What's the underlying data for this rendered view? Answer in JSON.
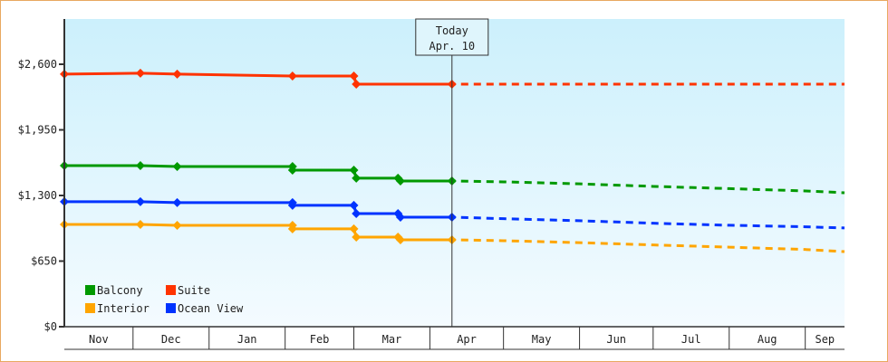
{
  "chart_data": {
    "type": "line",
    "title": "",
    "xlabel": "",
    "ylabel": "",
    "ylim": [
      0,
      2900
    ],
    "yticks": [
      0,
      650,
      1300,
      1950,
      2600
    ],
    "ytick_labels": [
      "$0",
      "$650",
      "$1,300",
      "$1,950",
      "$2,600"
    ],
    "x_range": [
      "Nov 3",
      "Sep 17"
    ],
    "month_labels": [
      "Nov",
      "Dec",
      "Jan",
      "Feb",
      "Mar",
      "Apr",
      "May",
      "Jun",
      "Jul",
      "Aug",
      "Sep"
    ],
    "today_marker": {
      "line1": "Today",
      "line2": "Apr. 10",
      "date": "Apr 10"
    },
    "legend_placement": "bottom-left",
    "grid": false,
    "series": [
      {
        "name": "Balcony",
        "color": "#009900",
        "history": [
          [
            "Nov 3",
            1596
          ],
          [
            "Dec 4",
            1596
          ],
          [
            "Dec 19",
            1587
          ],
          [
            "Feb 4",
            1587
          ],
          [
            "Feb 4",
            1551
          ],
          [
            "Mar 1",
            1551
          ],
          [
            "Mar 2",
            1471
          ],
          [
            "Mar 19",
            1471
          ],
          [
            "Mar 20",
            1444
          ],
          [
            "Apr 10",
            1444
          ]
        ],
        "forecast": [
          [
            "Apr 10",
            1444
          ],
          [
            "May 1",
            1435
          ],
          [
            "Jun 1",
            1415
          ],
          [
            "Jul 1",
            1390
          ],
          [
            "Aug 1",
            1368
          ],
          [
            "Sep 1",
            1345
          ],
          [
            "Sep 17",
            1327
          ]
        ]
      },
      {
        "name": "Suite",
        "color": "#ff3300",
        "history": [
          [
            "Nov 3",
            2502
          ],
          [
            "Dec 4",
            2511
          ],
          [
            "Dec 19",
            2502
          ],
          [
            "Feb 4",
            2484
          ],
          [
            "Mar 1",
            2484
          ],
          [
            "Mar 2",
            2403
          ],
          [
            "Apr 10",
            2403
          ]
        ],
        "forecast": [
          [
            "Apr 10",
            2403
          ],
          [
            "Sep 17",
            2403
          ]
        ]
      },
      {
        "name": "Interior",
        "color": "#ffa500",
        "history": [
          [
            "Nov 3",
            1013
          ],
          [
            "Dec 4",
            1013
          ],
          [
            "Dec 19",
            1004
          ],
          [
            "Feb 4",
            1004
          ],
          [
            "Feb 4",
            969
          ],
          [
            "Mar 1",
            969
          ],
          [
            "Mar 2",
            888
          ],
          [
            "Mar 19",
            888
          ],
          [
            "Mar 20",
            861
          ],
          [
            "Apr 10",
            861
          ]
        ],
        "forecast": [
          [
            "Apr 10",
            861
          ],
          [
            "May 1",
            852
          ],
          [
            "Jun 1",
            833
          ],
          [
            "Jul 1",
            810
          ],
          [
            "Aug 1",
            788
          ],
          [
            "Sep 1",
            765
          ],
          [
            "Sep 17",
            744
          ]
        ]
      },
      {
        "name": "Ocean View",
        "color": "#0033ff",
        "history": [
          [
            "Nov 3",
            1238
          ],
          [
            "Dec 4",
            1238
          ],
          [
            "Dec 19",
            1229
          ],
          [
            "Feb 4",
            1229
          ],
          [
            "Feb 4",
            1202
          ],
          [
            "Mar 1",
            1202
          ],
          [
            "Mar 2",
            1121
          ],
          [
            "Mar 19",
            1121
          ],
          [
            "Mar 20",
            1085
          ],
          [
            "Apr 10",
            1085
          ]
        ],
        "forecast": [
          [
            "Apr 10",
            1085
          ],
          [
            "May 1",
            1070
          ],
          [
            "Jun 1",
            1050
          ],
          [
            "Jul 1",
            1025
          ],
          [
            "Aug 1",
            1005
          ],
          [
            "Sep 1",
            990
          ],
          [
            "Sep 17",
            978
          ]
        ]
      }
    ]
  }
}
